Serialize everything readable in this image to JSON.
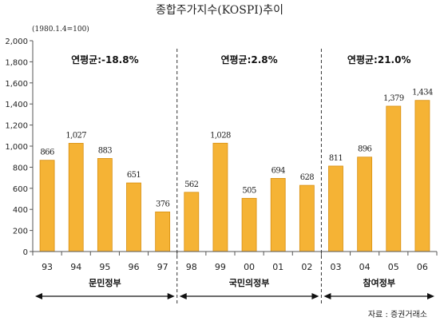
{
  "chart_data": {
    "type": "bar",
    "title": "종합주가지수(KOSPI)추이",
    "unit_note": "(1980.1.4=100)",
    "categories": [
      "93",
      "94",
      "95",
      "96",
      "97",
      "98",
      "99",
      "00",
      "01",
      "02",
      "03",
      "04",
      "05",
      "06"
    ],
    "values": [
      866,
      1027,
      883,
      651,
      376,
      562,
      1028,
      505,
      694,
      628,
      811,
      896,
      1379,
      1434
    ],
    "data_labels": [
      "866",
      "1,027",
      "883",
      "651",
      "376",
      "562",
      "1,028",
      "505",
      "694",
      "628",
      "811",
      "896",
      "1,379",
      "1,434"
    ],
    "bar_heights": [
      866,
      1027,
      883,
      651,
      376,
      562,
      1028,
      505,
      694,
      628,
      811,
      896,
      1379,
      1434
    ],
    "ylim": [
      0,
      2000
    ],
    "yticks": [
      0,
      200,
      400,
      600,
      800,
      1000,
      1200,
      1400,
      1600,
      1800,
      2000
    ],
    "ytick_labels": [
      "0",
      "200",
      "400",
      "600",
      "800",
      "1,000",
      "1,200",
      "1,400",
      "1,600",
      "1,800",
      "2,000"
    ],
    "bar_color": "#F5B335",
    "bar_edge_color": "#D88F10",
    "periods": [
      {
        "name": "문민정부",
        "annual_avg": "연평균:-18.8%",
        "start": 0,
        "end": 4
      },
      {
        "name": "국민의정부",
        "annual_avg": "연평균:2.8%",
        "start": 5,
        "end": 9
      },
      {
        "name": "참여정부",
        "annual_avg": "연평균:21.0%",
        "start": 10,
        "end": 13
      }
    ],
    "source": "자료 : 증권거래소",
    "grid": false
  }
}
